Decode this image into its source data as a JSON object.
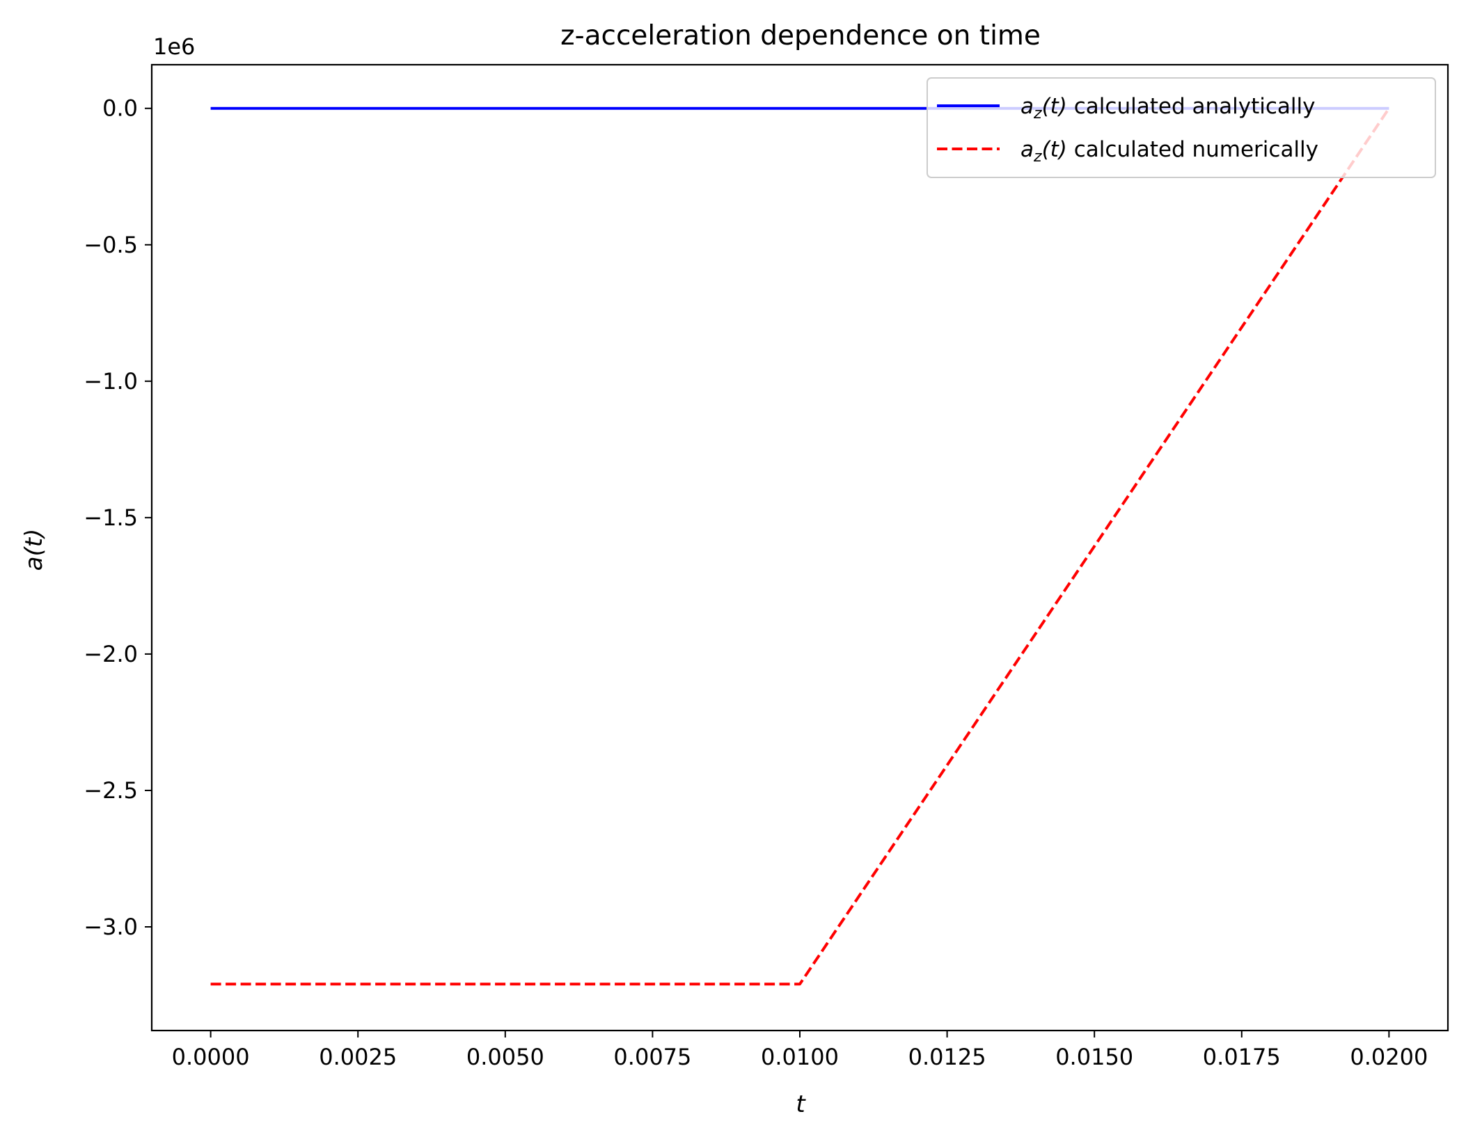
{
  "chart_data": {
    "type": "line",
    "title": "z-acceleration dependence on time",
    "xlabel": "t",
    "ylabel": "a(t)",
    "y_offset_text": "1e6",
    "xlim": [
      -0.001,
      0.021
    ],
    "ylim": [
      -3.38,
      0.16
    ],
    "y_scale_factor": 1000000,
    "x_ticks": [
      0.0,
      0.0025,
      0.005,
      0.0075,
      0.01,
      0.0125,
      0.015,
      0.0175,
      0.02
    ],
    "x_tick_labels": [
      "0.0000",
      "0.0025",
      "0.0050",
      "0.0075",
      "0.0100",
      "0.0125",
      "0.0150",
      "0.0175",
      "0.0200"
    ],
    "y_ticks": [
      0.0,
      -0.5,
      -1.0,
      -1.5,
      -2.0,
      -2.5,
      -3.0
    ],
    "y_tick_labels": [
      "0.0",
      "−0.5",
      "−1.0",
      "−1.5",
      "−2.0",
      "−2.5",
      "−3.0"
    ],
    "grid": false,
    "legend_position": "upper-right",
    "series": [
      {
        "name": "calculated analytically",
        "legend_math": [
          "a",
          "z",
          "(t)"
        ],
        "color": "#0000ff",
        "style": "solid",
        "x": [
          0.0,
          0.02
        ],
        "y": [
          0.0,
          0.0
        ]
      },
      {
        "name": "calculated numerically",
        "legend_math": [
          "a",
          "z",
          "(t)"
        ],
        "color": "#ff0000",
        "style": "dashed",
        "x": [
          0.0,
          0.01,
          0.02
        ],
        "y": [
          -3.21,
          -3.21,
          0.0
        ]
      }
    ]
  }
}
